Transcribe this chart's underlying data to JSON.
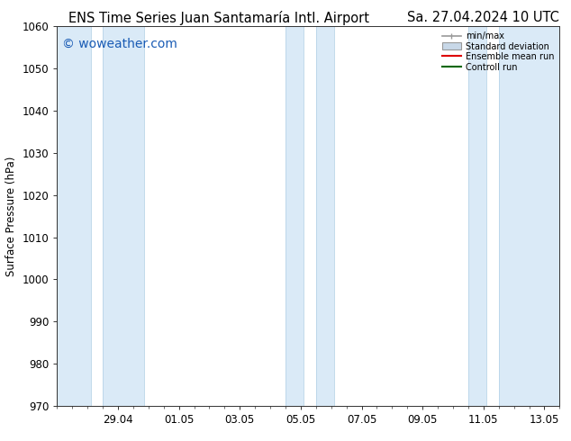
{
  "title_left": "ENS Time Series Juan Santamaría Intl. Airport",
  "title_right": "Sa. 27.04.2024 10 UTC",
  "ylabel": "Surface Pressure (hPa)",
  "watermark": "© woweather.com",
  "ylim": [
    970,
    1060
  ],
  "yticks": [
    970,
    980,
    990,
    1000,
    1010,
    1020,
    1030,
    1040,
    1050,
    1060
  ],
  "bg_color": "#ffffff",
  "plot_bg_color": "#ffffff",
  "band_color": "#daeaf7",
  "band_border_color": "#b8d4e8",
  "xtick_labels": [
    "29.04",
    "01.05",
    "03.05",
    "05.05",
    "07.05",
    "09.05",
    "11.05",
    "13.05"
  ],
  "legend_items": [
    {
      "label": "min/max",
      "color": "#aaaaaa",
      "type": "errorbar"
    },
    {
      "label": "Standard deviation",
      "color": "#c8d8e8",
      "type": "band"
    },
    {
      "label": "Ensemble mean run",
      "color": "#dd0000",
      "type": "line"
    },
    {
      "label": "Controll run",
      "color": "#006600",
      "type": "line"
    }
  ],
  "title_fontsize": 10.5,
  "axis_fontsize": 8.5,
  "watermark_color": "#1a5cb5",
  "watermark_fontsize": 10
}
